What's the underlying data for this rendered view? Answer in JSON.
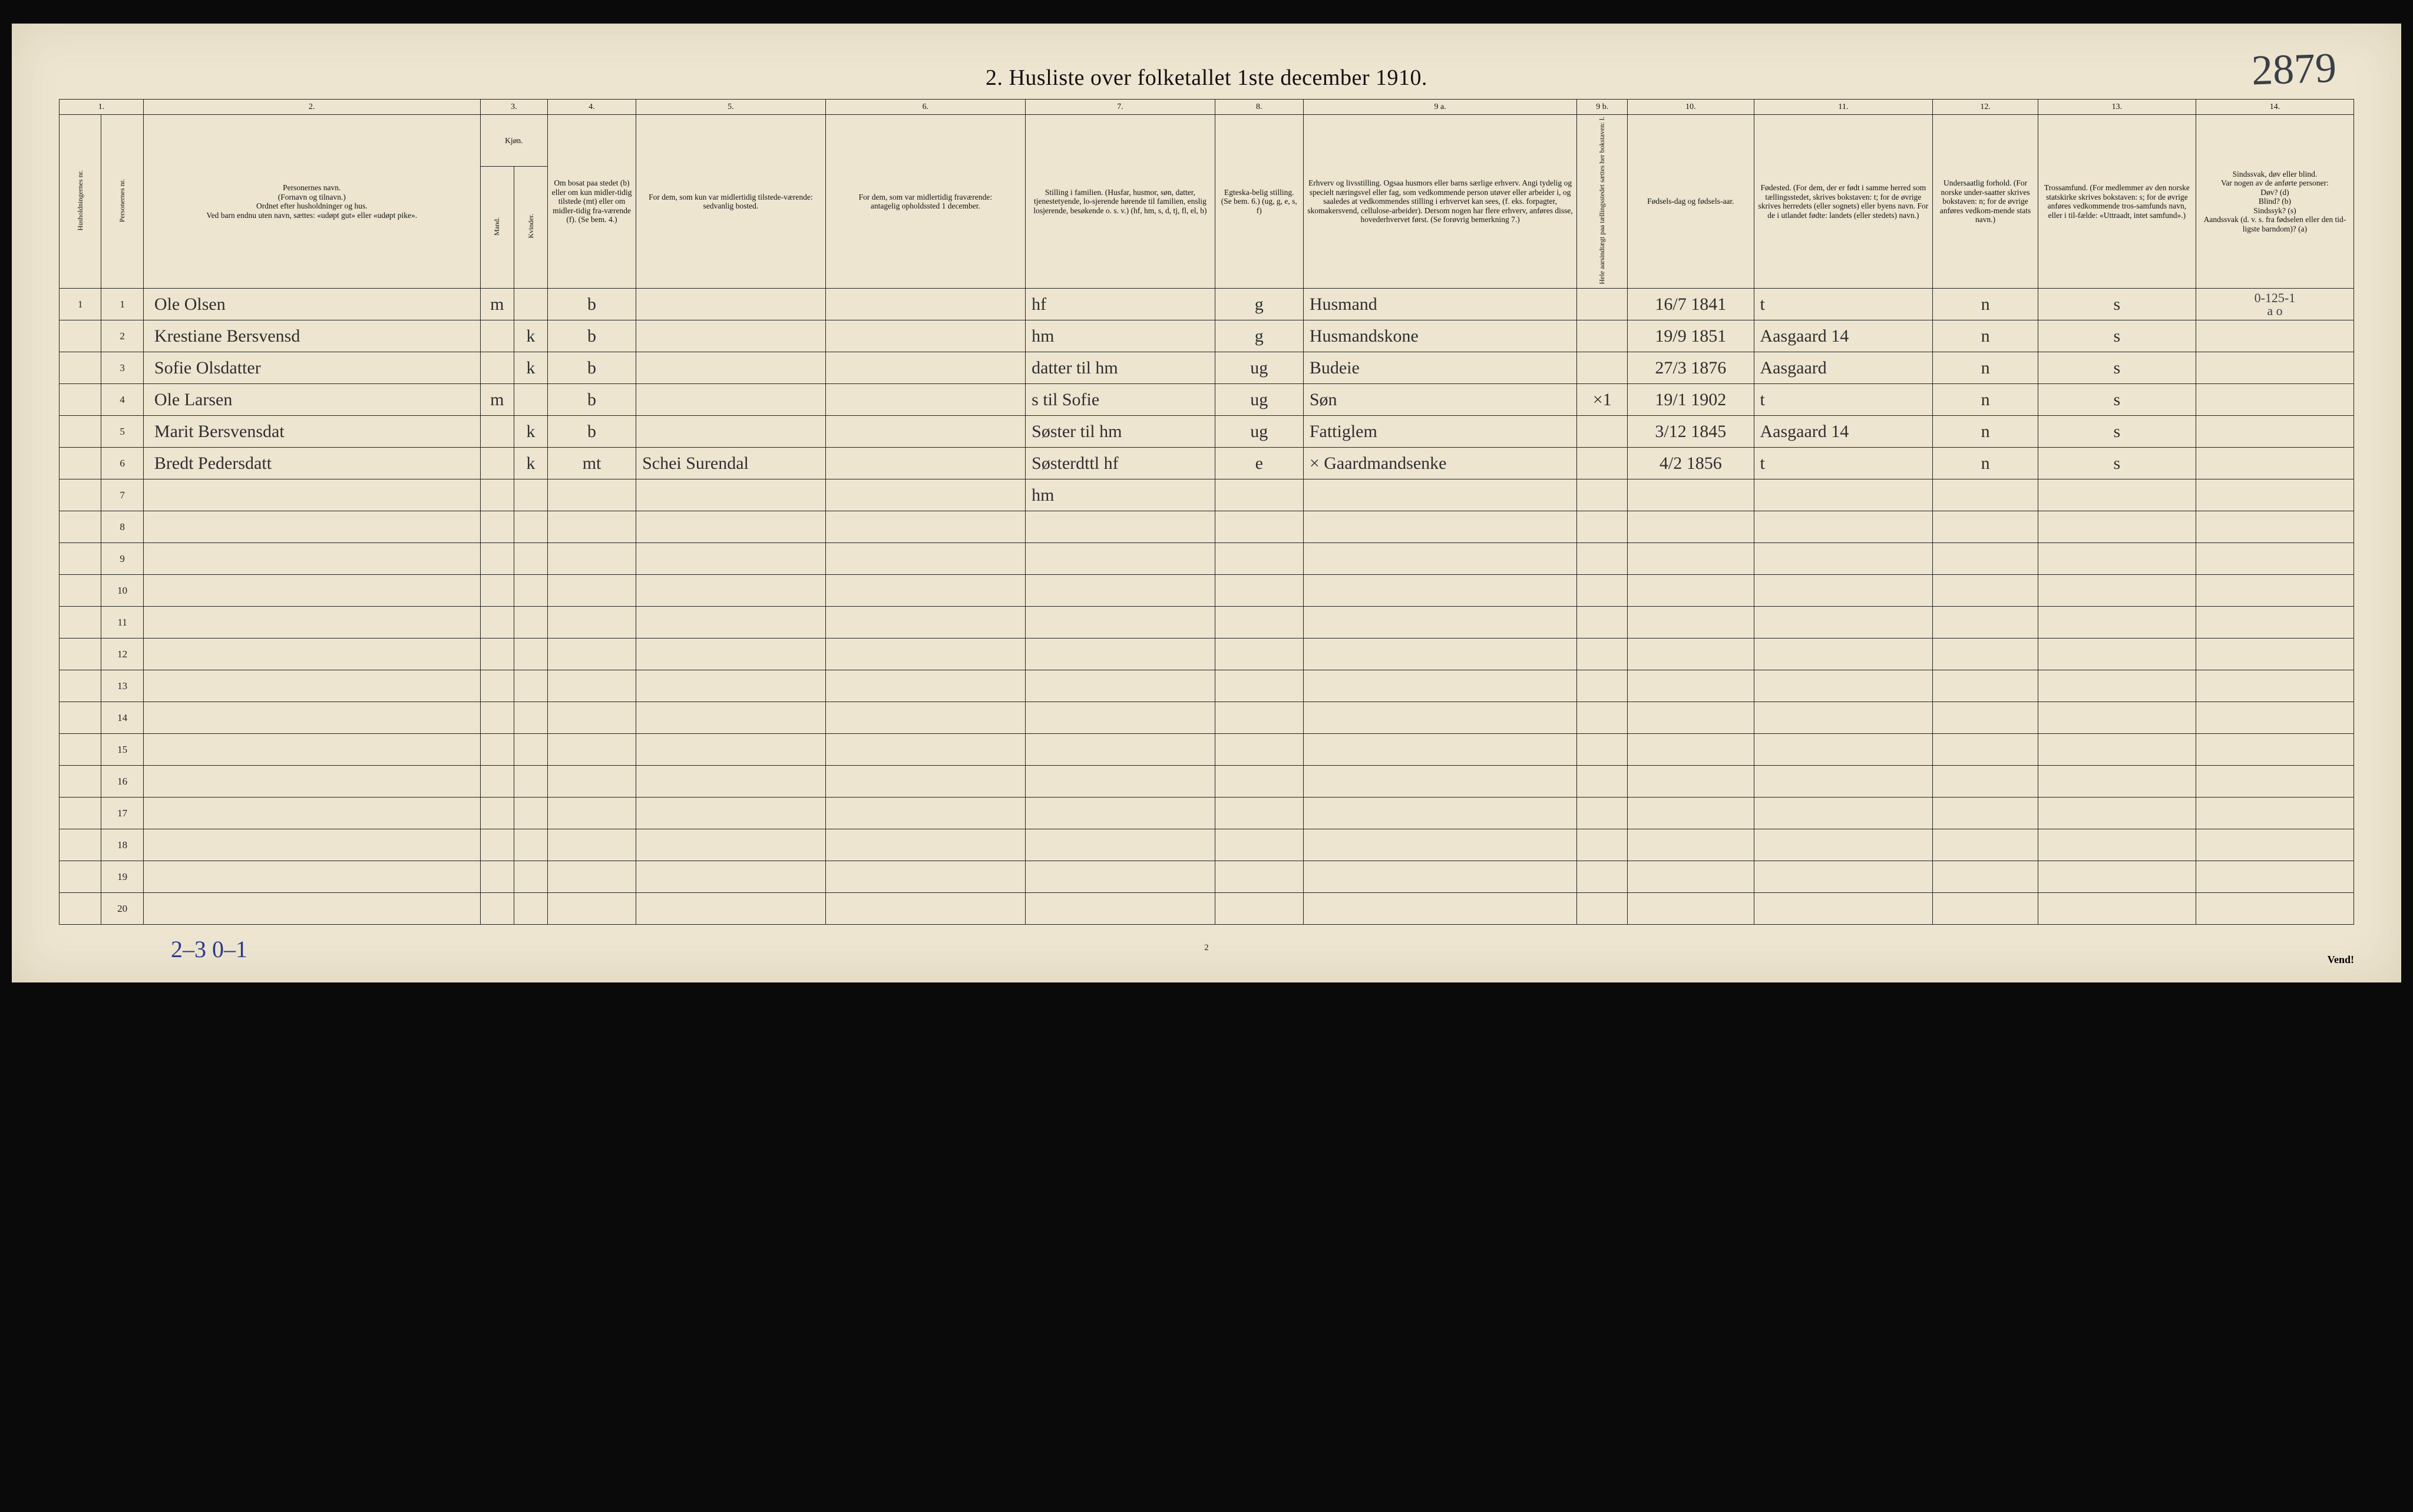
{
  "meta": {
    "title": "2.  Husliste over folketallet 1ste december 1910.",
    "handwritten_top_right": "2879",
    "bottom_handwritten": "2–3   0–1",
    "page_number": "2",
    "vend": "Vend!",
    "top_right_margin_note": "0-125-1",
    "top_right_margin_note2": "a o"
  },
  "header": {
    "colnums": [
      "1.",
      "2.",
      "3.",
      "4.",
      "5.",
      "6.",
      "7.",
      "8.",
      "9 a.",
      "9 b.",
      "10.",
      "11.",
      "12.",
      "13.",
      "14."
    ],
    "col1a": "Husholdningernes nr.",
    "col1b": "Personernes nr.",
    "col2": "Personernes navn.\n(Fornavn og tilnavn.)\nOrdnet efter husholdninger og hus.\nVed barn endnu uten navn, sættes: «udøpt gut» eller «udøpt pike».",
    "col3_top": "Kjøn.",
    "col3a": "Mand.",
    "col3b": "Kvinder.",
    "col3_foot": "m. | k.",
    "col4": "Om bosat paa stedet (b) eller om kun midler-tidig tilstede (mt) eller om midler-tidig fra-værende (f). (Se bem. 4.)",
    "col5": "For dem, som kun var midlertidig tilstede-værende:\nsedvanlig bosted.",
    "col6": "For dem, som var midlertidig fraværende:\nantagelig opholdssted 1 december.",
    "col7": "Stilling i familien.\n(Husfar, husmor, søn, datter, tjenestetyende, lo-sjerende hørende til familien, enslig losjerende, besøkende o. s. v.)\n(hf, hm, s, d, tj, fl, el, b)",
    "col8": "Egteska-belig stilling.\n(Se bem. 6.)\n(ug, g, e, s, f)",
    "col9a": "Erhverv og livsstilling.\nOgsaa husmors eller barns særlige erhverv. Angi tydelig og specielt næringsvel eller fag, som vedkommende person utøver eller arbeider i, og saaledes at vedkommendes stilling i erhvervet kan sees, (f. eks. forpagter, skomakersvend, cellulose-arbeider). Dersom nogen har flere erhverv, anføres disse, hovederhvervet først.\n(Se forøvrig bemerkning 7.)",
    "col9b": "Hele aarsindtægt paa tællingsstedet sættes her bokstaven: l.",
    "col10": "Fødsels-dag og fødsels-aar.",
    "col11": "Fødested.\n(For dem, der er født i samme herred som tællingsstedet, skrives bokstaven: t; for de øvrige skrives herredets (eller sognets) eller byens navn. For de i utlandet fødte: landets (eller stedets) navn.)",
    "col12": "Undersaatlig forhold.\n(For norske under-saatter skrives bokstaven: n; for de øvrige anføres vedkom-mende stats navn.)",
    "col13": "Trossamfund.\n(For medlemmer av den norske statskirke skrives bokstaven: s; for de øvrige anføres vedkommende tros-samfunds navn, eller i til-fælde: «Uttraadt, intet samfund».)",
    "col14": "Sindssvak, døv eller blind.\nVar nogen av de anførte personer:\nDøv? (d)\nBlind? (b)\nSindssyk? (s)\nAandssvak (d. v. s. fra fødselen eller den tid-ligste barndom)? (a)"
  },
  "rows": [
    {
      "hh": "1",
      "pn": "1",
      "name": "Ole Olsen",
      "sex_m": "m",
      "sex_k": "",
      "res": "b",
      "c5": "",
      "c6": "",
      "fam": "hf",
      "mar": "g",
      "occ": "Husmand",
      "c9b": "",
      "born": "16/7 1841",
      "place": "t",
      "nat": "n",
      "rel": "s",
      "c14": ""
    },
    {
      "hh": "",
      "pn": "2",
      "name": "Krestiane Bersvensd",
      "sex_m": "",
      "sex_k": "k",
      "res": "b",
      "c5": "",
      "c6": "",
      "fam": "hm",
      "mar": "g",
      "occ": "Husmandskone",
      "c9b": "",
      "born": "19/9 1851",
      "place": "Aasgaard 14",
      "nat": "n",
      "rel": "s",
      "c14": ""
    },
    {
      "hh": "",
      "pn": "3",
      "name": "Sofie Olsdatter",
      "sex_m": "",
      "sex_k": "k",
      "res": "b",
      "c5": "",
      "c6": "",
      "fam": "datter til hm",
      "mar": "ug",
      "occ": "Budeie",
      "c9b": "",
      "born": "27/3 1876",
      "place": "Aasgaard",
      "nat": "n",
      "rel": "s",
      "c14": ""
    },
    {
      "hh": "",
      "pn": "4",
      "name": "Ole Larsen",
      "sex_m": "m",
      "sex_k": "",
      "res": "b",
      "c5": "",
      "c6": "",
      "fam": "s til Sofie",
      "mar": "ug",
      "occ": "Søn",
      "c9b": "×1",
      "born": "19/1 1902",
      "place": "t",
      "nat": "n",
      "rel": "s",
      "c14": ""
    },
    {
      "hh": "",
      "pn": "5",
      "name": "Marit Bersvensdat",
      "sex_m": "",
      "sex_k": "k",
      "res": "b",
      "c5": "",
      "c6": "",
      "fam": "Søster til hm",
      "mar": "ug",
      "occ": "Fattiglem",
      "c9b": "",
      "born": "3/12 1845",
      "place": "Aasgaard 14",
      "nat": "n",
      "rel": "s",
      "c14": ""
    },
    {
      "hh": "",
      "pn": "6",
      "name": "Bredt Pedersdatt",
      "sex_m": "",
      "sex_k": "k",
      "res": "mt",
      "c5": "Schei Surendal",
      "c6": "",
      "fam": "Søsterdttl hf",
      "mar": "e",
      "occ": "× Gaardmandsenke",
      "c9b": "",
      "born": "4/2 1856",
      "place": "t",
      "nat": "n",
      "rel": "s",
      "c14": ""
    },
    {
      "hh": "",
      "pn": "7",
      "name": "",
      "sex_m": "",
      "sex_k": "",
      "res": "",
      "c5": "",
      "c6": "",
      "fam": "hm",
      "mar": "",
      "occ": "",
      "c9b": "",
      "born": "",
      "place": "",
      "nat": "",
      "rel": "",
      "c14": ""
    },
    {
      "hh": "",
      "pn": "8"
    },
    {
      "hh": "",
      "pn": "9"
    },
    {
      "hh": "",
      "pn": "10"
    },
    {
      "hh": "",
      "pn": "11"
    },
    {
      "hh": "",
      "pn": "12"
    },
    {
      "hh": "",
      "pn": "13"
    },
    {
      "hh": "",
      "pn": "14"
    },
    {
      "hh": "",
      "pn": "15"
    },
    {
      "hh": "",
      "pn": "16"
    },
    {
      "hh": "",
      "pn": "17"
    },
    {
      "hh": "",
      "pn": "18"
    },
    {
      "hh": "",
      "pn": "19"
    },
    {
      "hh": "",
      "pn": "20"
    }
  ],
  "style": {
    "paper": "#ede5d0",
    "ink": "#111111",
    "hand_ink": "#2f2f2f",
    "blue_ink": "#2b3a8a",
    "rule": "#222222",
    "col_widths_pct": [
      2.0,
      2.0,
      16.0,
      1.6,
      1.6,
      4.2,
      9.0,
      9.5,
      9.0,
      4.2,
      13.0,
      2.4,
      6.0,
      8.5,
      5.0,
      7.5,
      7.5
    ]
  }
}
